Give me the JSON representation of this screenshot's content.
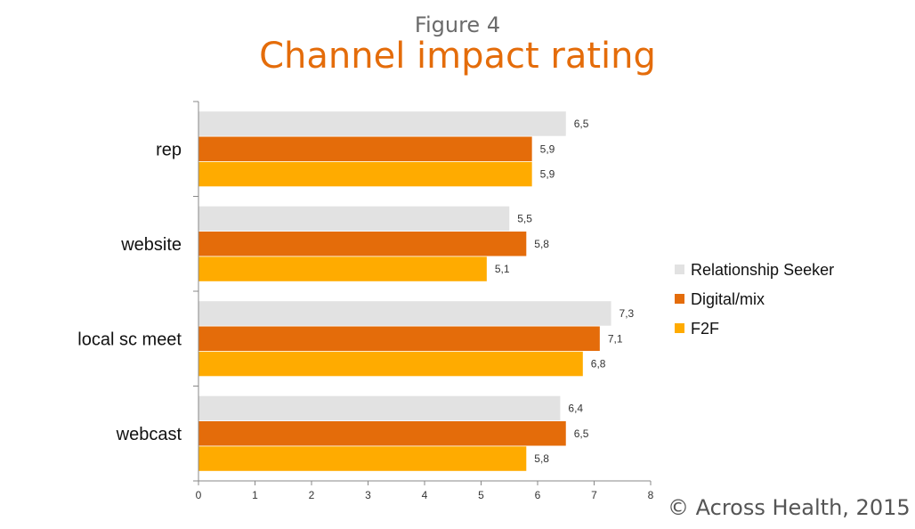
{
  "figure_label": "Figure 4",
  "copyright": "©  Across Health, 2015",
  "chart_data": {
    "type": "bar",
    "orientation": "horizontal",
    "title": "Channel impact rating",
    "categories": [
      "rep",
      "website",
      "local sc meet",
      "webcast"
    ],
    "series": [
      {
        "name": "Relationship Seeker",
        "color": "#e2e2e2",
        "values": [
          6.5,
          5.5,
          7.3,
          6.4
        ],
        "labels": [
          "6,5",
          "5,5",
          "7,3",
          "6,4"
        ]
      },
      {
        "name": "Digital/mix",
        "color": "#e46c0a",
        "values": [
          5.9,
          5.8,
          7.1,
          6.5
        ],
        "labels": [
          "5,9",
          "5,8",
          "7,1",
          "6,5"
        ]
      },
      {
        "name": "F2F",
        "color": "#ffab00",
        "values": [
          5.9,
          5.1,
          6.8,
          5.8
        ],
        "labels": [
          "5,9",
          "5,1",
          "6,8",
          "5,8"
        ]
      }
    ],
    "xlim": [
      0,
      8
    ],
    "xticks": [
      "0",
      "1",
      "2",
      "3",
      "4",
      "5",
      "6",
      "7",
      "8"
    ],
    "grid": false,
    "legend": "right"
  }
}
